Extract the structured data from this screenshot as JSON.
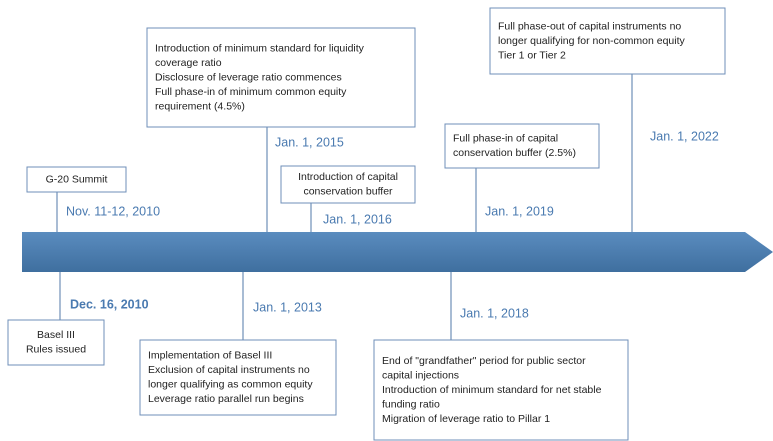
{
  "events": [
    {
      "date": "Nov. 11-12, 2010",
      "lines": [
        "G-20 Summit"
      ]
    },
    {
      "date": "Jan. 1, 2015",
      "lines": [
        "Introduction of minimum standard for liquidity",
        "coverage ratio",
        "Disclosure of leverage ratio commences",
        "Full phase-in of minimum common equity",
        "requirement (4.5%)"
      ]
    },
    {
      "date": "Jan. 1, 2016",
      "lines": [
        "Introduction of capital",
        "conservation buffer"
      ]
    },
    {
      "date": "Jan. 1, 2019",
      "lines": [
        "Full phase-in of capital",
        "conservation buffer (2.5%)"
      ]
    },
    {
      "date": "Jan. 1, 2022",
      "lines": [
        "Full phase-out of capital instruments no",
        "longer qualifying for non-common equity",
        "Tier 1 or Tier 2"
      ]
    },
    {
      "date": "Dec. 16, 2010",
      "lines": [
        "Basel III",
        "Rules issued"
      ]
    },
    {
      "date": "Jan. 1, 2013",
      "lines": [
        "Implementation of Basel III",
        "Exclusion of capital instruments no",
        "longer qualifying as common equity",
        "Leverage ratio parallel run begins"
      ]
    },
    {
      "date": "Jan. 1, 2018",
      "lines": [
        "End of \"grandfather\" period for public sector",
        "capital injections",
        "Introduction of minimum standard for net stable",
        "funding ratio",
        "Migration of leverage ratio to Pillar 1"
      ]
    }
  ]
}
